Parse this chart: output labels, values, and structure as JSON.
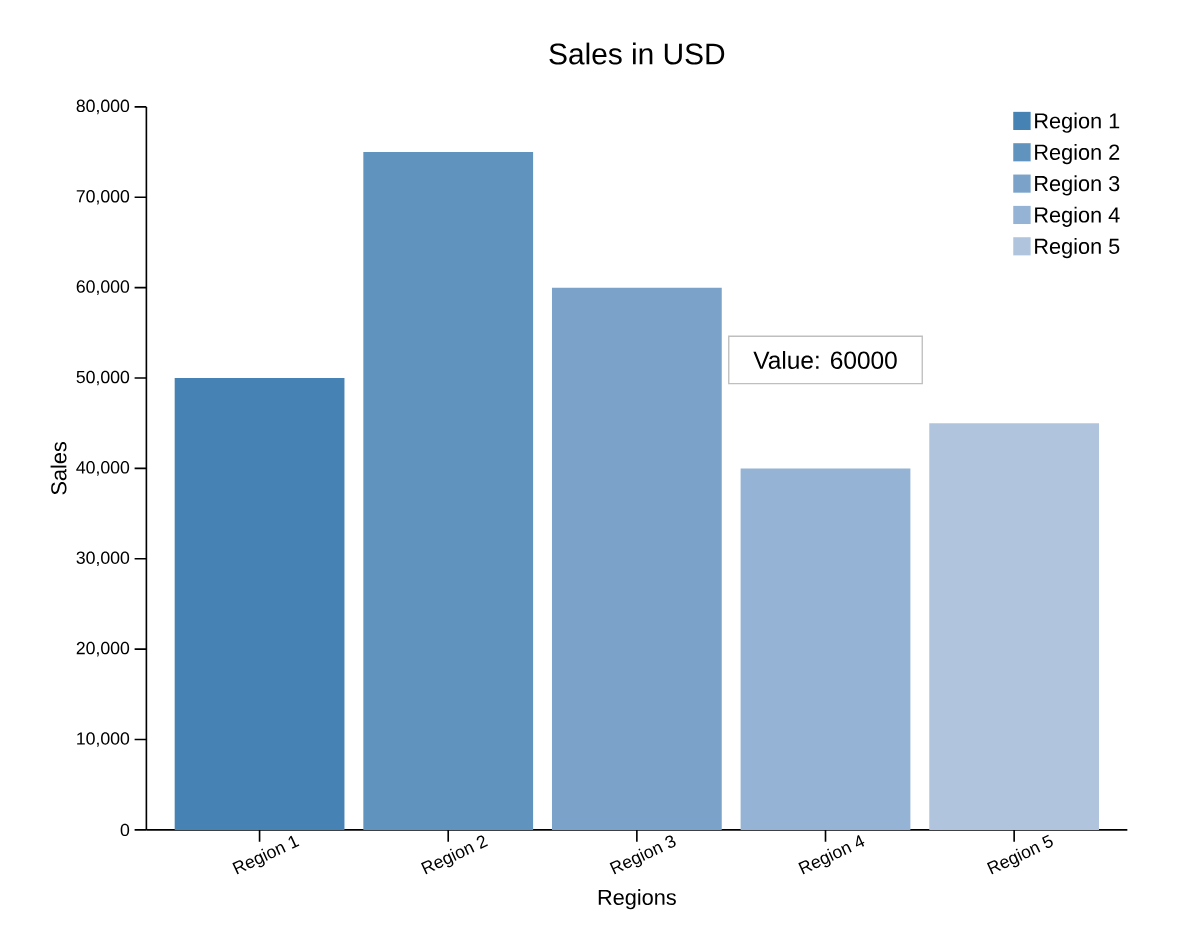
{
  "chart_data": {
    "type": "bar",
    "title": "Sales in USD",
    "xlabel": "Regions",
    "ylabel": "Sales",
    "categories": [
      "Region 1",
      "Region 2",
      "Region 3",
      "Region 4",
      "Region 5"
    ],
    "series": [
      {
        "name": "Region 1",
        "color": "#4682b4",
        "values": [
          50000,
          null,
          null,
          null,
          null
        ]
      },
      {
        "name": "Region 2",
        "color": "#6094bf",
        "values": [
          null,
          75000,
          null,
          null,
          null
        ]
      },
      {
        "name": "Region 3",
        "color": "#7ba3c9",
        "values": [
          null,
          null,
          60000,
          null,
          null
        ]
      },
      {
        "name": "Region 4",
        "color": "#95b3d4",
        "values": [
          null,
          null,
          null,
          40000,
          null
        ]
      },
      {
        "name": "Region 5",
        "color": "#b0c4de",
        "values": [
          null,
          null,
          null,
          null,
          45000
        ]
      }
    ],
    "ylim": [
      0,
      80000
    ],
    "yticks": [
      {
        "value": 0,
        "label": "0"
      },
      {
        "value": 10000,
        "label": "10,000"
      },
      {
        "value": 20000,
        "label": "20,000"
      },
      {
        "value": 30000,
        "label": "30,000"
      },
      {
        "value": 40000,
        "label": "40,000"
      },
      {
        "value": 50000,
        "label": "50,000"
      },
      {
        "value": 60000,
        "label": "60,000"
      },
      {
        "value": 70000,
        "label": "70,000"
      },
      {
        "value": 80000,
        "label": "80,000"
      }
    ],
    "legend": "top right",
    "grid": false,
    "annotations": [
      "Value: 60000"
    ]
  }
}
